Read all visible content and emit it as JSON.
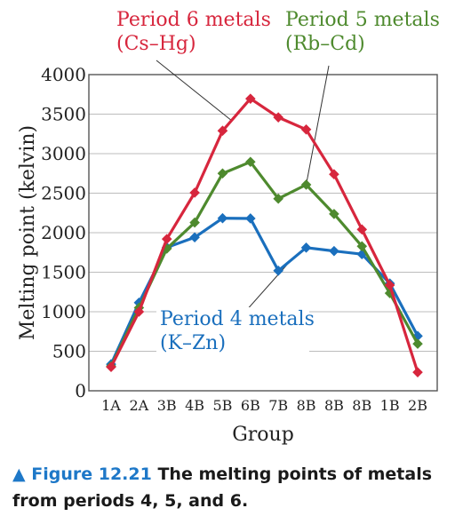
{
  "caption": {
    "marker": "▲",
    "figure_label": "Figure 12.21",
    "text": "The melting points of metals from periods 4, 5, and 6."
  },
  "chart_data": {
    "type": "line",
    "xlabel": "Group",
    "ylabel": "Melting point (kelvin)",
    "categories": [
      "1A",
      "2A",
      "3B",
      "4B",
      "5B",
      "6B",
      "7B",
      "8B",
      "8B",
      "8B",
      "1B",
      "2B"
    ],
    "ylim": [
      0,
      4000
    ],
    "yticks": [
      0,
      500,
      1000,
      1500,
      2000,
      2500,
      3000,
      3500,
      4000
    ],
    "grid": true,
    "series": [
      {
        "name": "Period 4 metals",
        "label_lines": [
          "Period 4 metals",
          "(K–Zn)"
        ],
        "color": "#1a6fbd",
        "values": [
          336,
          1115,
          1814,
          1941,
          2183,
          2180,
          1519,
          1811,
          1768,
          1728,
          1358,
          693
        ]
      },
      {
        "name": "Period 5 metals",
        "label_lines": [
          "Period 5 metals",
          "(Rb–Cd)"
        ],
        "color": "#4e8a2e",
        "values": [
          312,
          1050,
          1799,
          2128,
          2750,
          2896,
          2430,
          2607,
          2237,
          1828,
          1235,
          594
        ]
      },
      {
        "name": "Period 6 metals",
        "label_lines": [
          "Period 6 metals",
          "(Cs–Hg)"
        ],
        "color": "#d7263d",
        "values": [
          301,
          1000,
          1920,
          2506,
          3290,
          3695,
          3459,
          3306,
          2739,
          2041,
          1337,
          234
        ]
      }
    ]
  }
}
